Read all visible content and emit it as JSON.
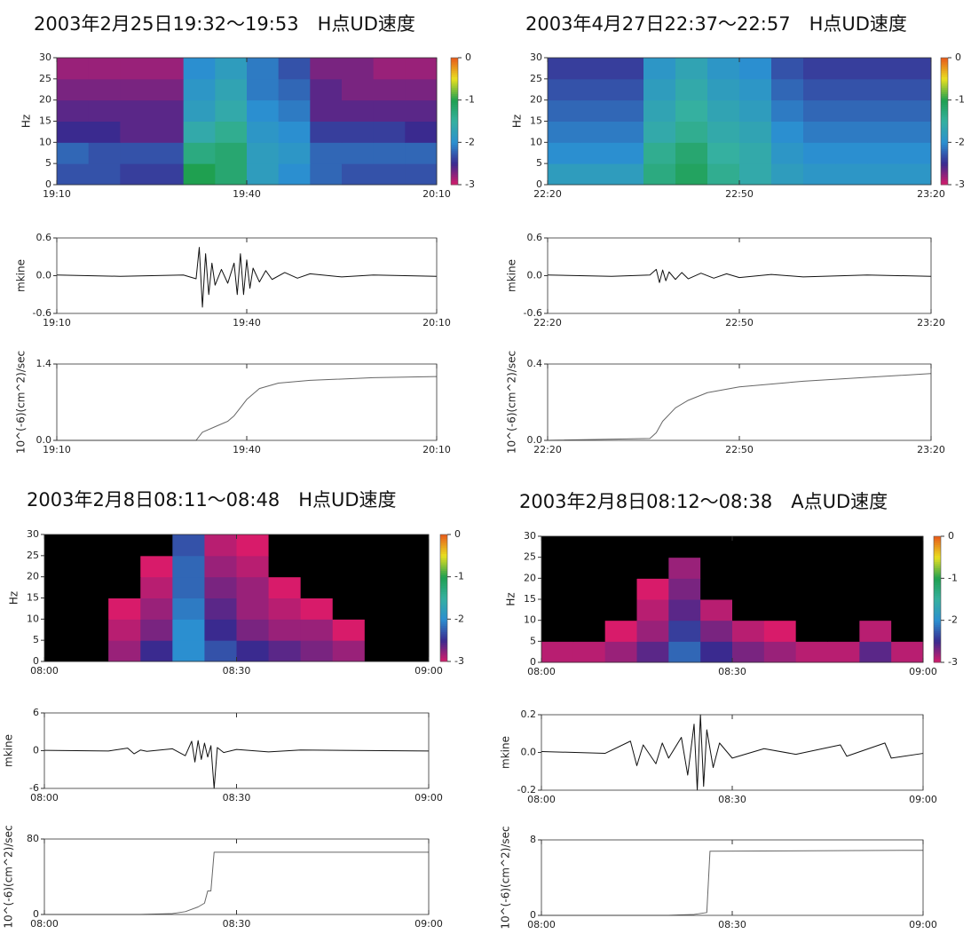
{
  "chart_data": [
    {
      "type": "heatmap",
      "title": "2003年2月25日19:32～19:53　H点UD速度",
      "ylabel": "Hz",
      "xlim": [
        1150,
        1210
      ],
      "xticks": [
        {
          "value": 1150,
          "label": "19:10"
        },
        {
          "value": 1180,
          "label": "19:40"
        },
        {
          "value": 1210,
          "label": "20:10"
        }
      ],
      "ylim": [
        0,
        30
      ],
      "yticks": [
        0,
        5,
        10,
        15,
        20,
        25,
        30
      ],
      "xbins": [
        1150,
        1155,
        1160,
        1165,
        1170,
        1175,
        1180,
        1185,
        1190,
        1195,
        1200,
        1205,
        1210
      ],
      "ybins": [
        0,
        5,
        10,
        15,
        20,
        25,
        30
      ],
      "z": [
        [
          -2.3,
          -2.3,
          -2.4,
          -2.4,
          -1.0,
          -1.2,
          -1.8,
          -2.0,
          -2.2,
          -2.3,
          -2.3,
          -2.3
        ],
        [
          -2.2,
          -2.3,
          -2.3,
          -2.3,
          -1.3,
          -1.2,
          -1.8,
          -1.9,
          -2.2,
          -2.2,
          -2.2,
          -2.2
        ],
        [
          -2.5,
          -2.5,
          -2.6,
          -2.6,
          -1.6,
          -1.4,
          -1.9,
          -2.0,
          -2.4,
          -2.4,
          -2.4,
          -2.5
        ],
        [
          -2.6,
          -2.6,
          -2.6,
          -2.6,
          -1.8,
          -1.6,
          -2.0,
          -2.1,
          -2.6,
          -2.6,
          -2.6,
          -2.6
        ],
        [
          -2.7,
          -2.7,
          -2.7,
          -2.7,
          -1.9,
          -1.7,
          -2.1,
          -2.2,
          -2.6,
          -2.7,
          -2.7,
          -2.7
        ],
        [
          -2.8,
          -2.8,
          -2.8,
          -2.8,
          -2.0,
          -1.8,
          -2.1,
          -2.3,
          -2.7,
          -2.7,
          -2.8,
          -2.8
        ]
      ],
      "zlim": [
        -3,
        0
      ],
      "zticks": [
        0,
        -1,
        -2,
        -3
      ],
      "colorscale": [
        "#d81b6a",
        "#3a2a8f",
        "#2b8fd0",
        "#35b0a0",
        "#1fa050",
        "#e8e020",
        "#e85a1a"
      ],
      "under_color": "#000000"
    },
    {
      "type": "line",
      "ylabel": "mkine",
      "color": "#111111",
      "xlim": [
        1150,
        1210
      ],
      "xticks": [
        {
          "value": 1150,
          "label": "19:10"
        },
        {
          "value": 1180,
          "label": "19:40"
        },
        {
          "value": 1210,
          "label": "20:10"
        }
      ],
      "ylim": [
        -0.6,
        0.6
      ],
      "yticks": [
        -0.6,
        {
          "value": 0,
          "label": "0.0"
        },
        0.6
      ],
      "x": [
        1150,
        1160,
        1170,
        1172,
        1172.5,
        1173,
        1173.5,
        1174,
        1174.5,
        1175,
        1176,
        1177,
        1178,
        1178.5,
        1179,
        1179.5,
        1180,
        1180.5,
        1181,
        1182,
        1183,
        1184,
        1186,
        1188,
        1190,
        1195,
        1200,
        1210
      ],
      "values": [
        0.01,
        -0.01,
        0.01,
        -0.05,
        0.45,
        -0.5,
        0.35,
        -0.3,
        0.2,
        -0.15,
        0.1,
        -0.12,
        0.2,
        -0.3,
        0.35,
        -0.3,
        0.25,
        -0.2,
        0.12,
        -0.1,
        0.08,
        -0.06,
        0.05,
        -0.04,
        0.03,
        -0.02,
        0.01,
        -0.01
      ]
    },
    {
      "type": "line",
      "ylabel": "10^(-6)(cm^2)/sec",
      "color": "#666666",
      "xlim": [
        1150,
        1210
      ],
      "xticks": [
        {
          "value": 1150,
          "label": "19:10"
        },
        {
          "value": 1180,
          "label": "19:40"
        },
        {
          "value": 1210,
          "label": "20:10"
        }
      ],
      "ylim": [
        0,
        1.4
      ],
      "yticks": [
        {
          "value": 0,
          "label": "0.0"
        },
        1.4
      ],
      "x": [
        1150,
        1172,
        1173,
        1175,
        1177,
        1178,
        1179,
        1180,
        1182,
        1185,
        1190,
        1200,
        1210
      ],
      "values": [
        0,
        0,
        0.15,
        0.25,
        0.35,
        0.45,
        0.6,
        0.75,
        0.95,
        1.05,
        1.1,
        1.15,
        1.17
      ]
    },
    {
      "type": "heatmap",
      "title": "2003年4月27日22:37～22:57　H点UD速度",
      "ylabel": "Hz",
      "xlim": [
        1340,
        1400
      ],
      "xticks": [
        {
          "value": 1340,
          "label": "22:20"
        },
        {
          "value": 1370,
          "label": "22:50"
        },
        {
          "value": 1400,
          "label": "23:20"
        }
      ],
      "ylim": [
        0,
        30
      ],
      "yticks": [
        0,
        5,
        10,
        15,
        20,
        25,
        30
      ],
      "xbins": [
        1340,
        1345,
        1350,
        1355,
        1360,
        1365,
        1370,
        1375,
        1380,
        1385,
        1390,
        1395,
        1400
      ],
      "ybins": [
        0,
        5,
        10,
        15,
        20,
        25,
        30
      ],
      "z": [
        [
          -1.8,
          -1.8,
          -1.8,
          -1.3,
          -1.1,
          -1.4,
          -1.6,
          -1.8,
          -1.9,
          -1.9,
          -1.9,
          -1.9
        ],
        [
          -2.0,
          -2.0,
          -2.0,
          -1.4,
          -1.2,
          -1.5,
          -1.6,
          -1.9,
          -2.0,
          -2.0,
          -2.0,
          -2.0
        ],
        [
          -2.1,
          -2.1,
          -2.1,
          -1.6,
          -1.4,
          -1.6,
          -1.7,
          -2.0,
          -2.1,
          -2.1,
          -2.1,
          -2.1
        ],
        [
          -2.2,
          -2.2,
          -2.2,
          -1.7,
          -1.5,
          -1.7,
          -1.8,
          -2.1,
          -2.2,
          -2.2,
          -2.2,
          -2.2
        ],
        [
          -2.3,
          -2.3,
          -2.3,
          -1.8,
          -1.6,
          -1.8,
          -1.9,
          -2.2,
          -2.3,
          -2.3,
          -2.3,
          -2.3
        ],
        [
          -2.4,
          -2.4,
          -2.4,
          -1.9,
          -1.7,
          -1.9,
          -2.0,
          -2.3,
          -2.4,
          -2.4,
          -2.4,
          -2.4
        ]
      ],
      "zlim": [
        -3,
        0
      ],
      "zticks": [
        0,
        -1,
        -2,
        -3
      ],
      "colorscale": [
        "#d81b6a",
        "#3a2a8f",
        "#2b8fd0",
        "#35b0a0",
        "#1fa050",
        "#e8e020",
        "#e85a1a"
      ],
      "under_color": "#000000"
    },
    {
      "type": "line",
      "ylabel": "mkine",
      "color": "#111111",
      "xlim": [
        1340,
        1400
      ],
      "xticks": [
        {
          "value": 1340,
          "label": "22:20"
        },
        {
          "value": 1370,
          "label": "22:50"
        },
        {
          "value": 1400,
          "label": "23:20"
        }
      ],
      "ylim": [
        -0.6,
        0.6
      ],
      "yticks": [
        -0.6,
        {
          "value": 0,
          "label": "0.0"
        },
        0.6
      ],
      "x": [
        1340,
        1350,
        1356,
        1357,
        1357.5,
        1358,
        1358.5,
        1359,
        1360,
        1361,
        1362,
        1364,
        1366,
        1368,
        1370,
        1375,
        1380,
        1390,
        1400
      ],
      "values": [
        0.01,
        -0.01,
        0.01,
        0.1,
        -0.11,
        0.09,
        -0.08,
        0.06,
        -0.06,
        0.05,
        -0.05,
        0.04,
        -0.04,
        0.03,
        -0.03,
        0.02,
        -0.02,
        0.01,
        -0.01
      ]
    },
    {
      "type": "line",
      "ylabel": "10^(-6)(cm^2)/sec",
      "color": "#666666",
      "xlim": [
        1340,
        1400
      ],
      "xticks": [
        {
          "value": 1340,
          "label": "22:20"
        },
        {
          "value": 1370,
          "label": "22:50"
        },
        {
          "value": 1400,
          "label": "23:20"
        }
      ],
      "ylim": [
        0,
        0.4
      ],
      "yticks": [
        {
          "value": 0,
          "label": "0.0"
        },
        0.4
      ],
      "x": [
        1340,
        1356,
        1357,
        1358,
        1360,
        1362,
        1365,
        1370,
        1380,
        1390,
        1400
      ],
      "values": [
        0,
        0.01,
        0.04,
        0.1,
        0.17,
        0.21,
        0.25,
        0.28,
        0.31,
        0.33,
        0.35
      ]
    },
    {
      "type": "heatmap",
      "title": "2003年2月8日08:11～08:48　H点UD速度",
      "ylabel": "Hz",
      "xlim": [
        480,
        540
      ],
      "xticks": [
        {
          "value": 480,
          "label": "08:00"
        },
        {
          "value": 510,
          "label": "08:30"
        },
        {
          "value": 540,
          "label": "09:00"
        }
      ],
      "ylim": [
        0,
        30
      ],
      "yticks": [
        0,
        5,
        10,
        15,
        20,
        25,
        30
      ],
      "xbins": [
        480,
        485,
        490,
        495,
        500,
        505,
        510,
        515,
        520,
        525,
        530,
        535,
        540
      ],
      "ybins": [
        0,
        5,
        10,
        15,
        20,
        25,
        30
      ],
      "z": [
        [
          -3.5,
          -3.5,
          -2.8,
          -2.5,
          -2.0,
          -2.3,
          -2.5,
          -2.6,
          -2.7,
          -2.8,
          -3.5,
          -3.5
        ],
        [
          -3.5,
          -3.5,
          -2.9,
          -2.7,
          -2.0,
          -2.5,
          -2.7,
          -2.8,
          -2.8,
          -3.0,
          -3.5,
          -3.5
        ],
        [
          -3.5,
          -3.5,
          -3.0,
          -2.8,
          -2.1,
          -2.6,
          -2.8,
          -2.9,
          -3.0,
          -3.5,
          -3.5,
          -3.5
        ],
        [
          -3.5,
          -3.5,
          -3.5,
          -2.9,
          -2.2,
          -2.7,
          -2.8,
          -3.0,
          -3.5,
          -3.5,
          -3.5,
          -3.5
        ],
        [
          -3.5,
          -3.5,
          -3.5,
          -3.0,
          -2.2,
          -2.8,
          -2.9,
          -3.5,
          -3.5,
          -3.5,
          -3.5,
          -3.5
        ],
        [
          -3.5,
          -3.5,
          -3.5,
          -3.5,
          -2.3,
          -2.9,
          -3.0,
          -3.5,
          -3.5,
          -3.5,
          -3.5,
          -3.5
        ]
      ],
      "zlim": [
        -3,
        0
      ],
      "zticks": [
        0,
        -1,
        -2,
        -3
      ],
      "colorscale": [
        "#d81b6a",
        "#3a2a8f",
        "#2b8fd0",
        "#35b0a0",
        "#1fa050",
        "#e8e020",
        "#e85a1a"
      ],
      "under_color": "#000000"
    },
    {
      "type": "line",
      "ylabel": "mkine",
      "color": "#111111",
      "xlim": [
        480,
        540
      ],
      "xticks": [
        {
          "value": 480,
          "label": "08:00"
        },
        {
          "value": 510,
          "label": "08:30"
        },
        {
          "value": 540,
          "label": "09:00"
        }
      ],
      "ylim": [
        -6,
        6
      ],
      "yticks": [
        -6,
        0,
        6
      ],
      "x": [
        480,
        490,
        493,
        494,
        495,
        496,
        500,
        502,
        503,
        503.5,
        504,
        504.5,
        505,
        505.5,
        506,
        506.5,
        507,
        508,
        510,
        515,
        520,
        540
      ],
      "values": [
        0.05,
        -0.05,
        0.4,
        -0.5,
        0.1,
        -0.1,
        0.3,
        -0.8,
        1.5,
        -1.8,
        1.6,
        -1.4,
        1.2,
        -1.0,
        0.8,
        -6,
        0.5,
        -0.3,
        0.2,
        -0.2,
        0.1,
        -0.05
      ]
    },
    {
      "type": "line",
      "ylabel": "10^(-6)(cm^2)/sec",
      "color": "#666666",
      "xlim": [
        480,
        540
      ],
      "xticks": [
        {
          "value": 480,
          "label": "08:00"
        },
        {
          "value": 510,
          "label": "08:30"
        },
        {
          "value": 540,
          "label": "09:00"
        }
      ],
      "ylim": [
        0,
        80
      ],
      "yticks": [
        0,
        80
      ],
      "x": [
        480,
        495,
        500,
        502,
        504,
        505,
        505.5,
        506,
        506.5,
        540
      ],
      "values": [
        0,
        0,
        1,
        3,
        8,
        12,
        25,
        25,
        66,
        66
      ]
    },
    {
      "type": "heatmap",
      "title": "2003年2月8日08:12～08:38　A点UD速度",
      "ylabel": "Hz",
      "xlim": [
        480,
        540
      ],
      "xticks": [
        {
          "value": 480,
          "label": "08:00"
        },
        {
          "value": 510,
          "label": "08:30"
        },
        {
          "value": 540,
          "label": "09:00"
        }
      ],
      "ylim": [
        0,
        30
      ],
      "yticks": [
        0,
        5,
        10,
        15,
        20,
        25,
        30
      ],
      "xbins": [
        480,
        485,
        490,
        495,
        500,
        505,
        510,
        515,
        520,
        525,
        530,
        535,
        540
      ],
      "ybins": [
        0,
        5,
        10,
        15,
        20,
        25,
        30
      ],
      "z": [
        [
          -2.9,
          -2.9,
          -2.8,
          -2.6,
          -2.2,
          -2.5,
          -2.7,
          -2.8,
          -2.9,
          -2.9,
          -2.6,
          -2.9
        ],
        [
          -3.5,
          -3.5,
          -3.0,
          -2.8,
          -2.4,
          -2.7,
          -2.9,
          -3.0,
          -3.5,
          -3.5,
          -2.9,
          -3.5
        ],
        [
          -3.5,
          -3.5,
          -3.5,
          -2.9,
          -2.6,
          -2.9,
          -3.5,
          -3.5,
          -3.5,
          -3.5,
          -3.5,
          -3.5
        ],
        [
          -3.5,
          -3.5,
          -3.5,
          -3.0,
          -2.7,
          -3.5,
          -3.5,
          -3.5,
          -3.5,
          -3.5,
          -3.5,
          -3.5
        ],
        [
          -3.5,
          -3.5,
          -3.5,
          -3.5,
          -2.8,
          -3.5,
          -3.5,
          -3.5,
          -3.5,
          -3.5,
          -3.5,
          -3.5
        ],
        [
          -3.5,
          -3.5,
          -3.5,
          -3.5,
          -3.5,
          -3.5,
          -3.5,
          -3.5,
          -3.5,
          -3.5,
          -3.5,
          -3.5
        ]
      ],
      "zlim": [
        -3,
        0
      ],
      "zticks": [
        0,
        -1,
        -2,
        -3
      ],
      "colorscale": [
        "#d81b6a",
        "#3a2a8f",
        "#2b8fd0",
        "#35b0a0",
        "#1fa050",
        "#e8e020",
        "#e85a1a"
      ],
      "under_color": "#000000"
    },
    {
      "type": "line",
      "ylabel": "mkine",
      "color": "#111111",
      "xlim": [
        480,
        540
      ],
      "xticks": [
        {
          "value": 480,
          "label": "08:00"
        },
        {
          "value": 510,
          "label": "08:30"
        },
        {
          "value": 540,
          "label": "09:00"
        }
      ],
      "ylim": [
        -0.2,
        0.2
      ],
      "yticks": [
        -0.2,
        {
          "value": 0,
          "label": "0.0"
        },
        0.2
      ],
      "x": [
        480,
        490,
        494,
        495,
        496,
        498,
        499,
        500,
        502,
        503,
        504,
        504.5,
        505,
        505.5,
        506,
        507,
        508,
        510,
        515,
        520,
        527,
        528,
        534,
        535,
        540
      ],
      "values": [
        0.005,
        -0.005,
        0.06,
        -0.07,
        0.04,
        -0.06,
        0.05,
        -0.03,
        0.08,
        -0.12,
        0.15,
        -0.2,
        0.2,
        -0.18,
        0.12,
        -0.08,
        0.05,
        -0.03,
        0.02,
        -0.01,
        0.04,
        -0.02,
        0.05,
        -0.03,
        -0.005
      ]
    },
    {
      "type": "line",
      "ylabel": "10^(-6)(cm^2)/sec",
      "color": "#666666",
      "xlim": [
        480,
        540
      ],
      "xticks": [
        {
          "value": 480,
          "label": "08:00"
        },
        {
          "value": 510,
          "label": "08:30"
        },
        {
          "value": 540,
          "label": "09:00"
        }
      ],
      "ylim": [
        0,
        8
      ],
      "yticks": [
        0,
        8
      ],
      "x": [
        480,
        500,
        504,
        506,
        506.5,
        540
      ],
      "values": [
        0,
        0,
        0.1,
        0.3,
        6.8,
        6.9
      ]
    }
  ]
}
